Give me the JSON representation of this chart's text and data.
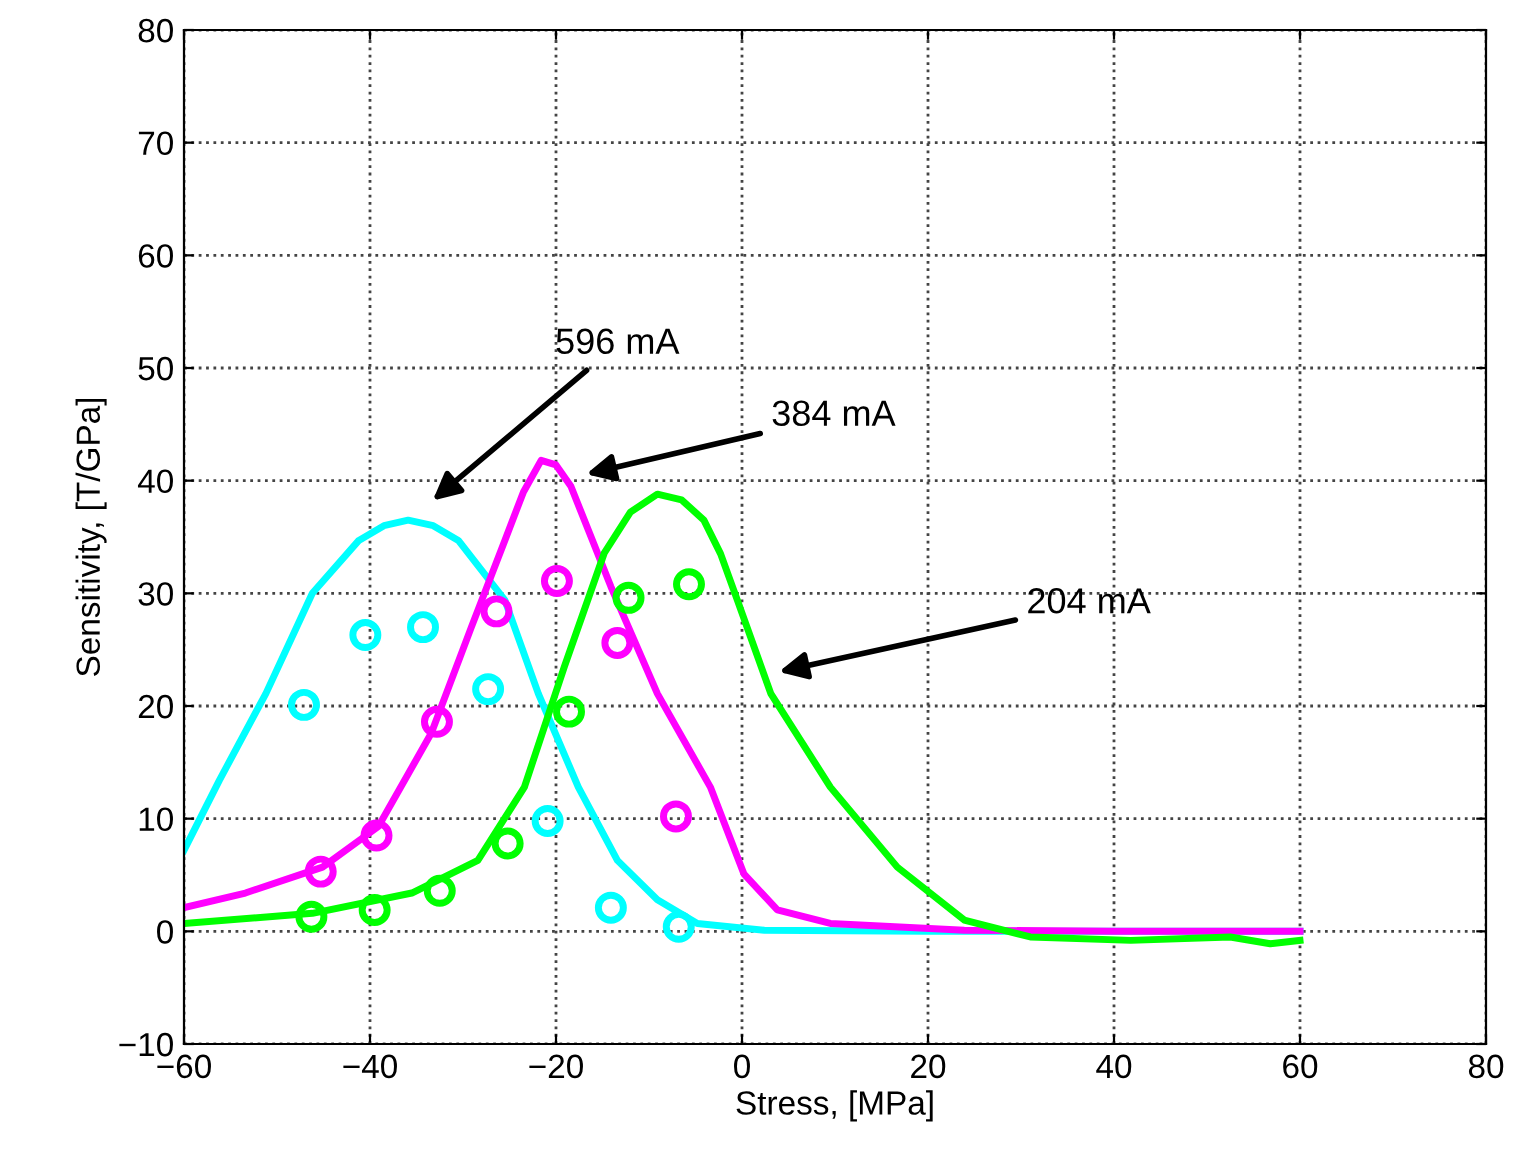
{
  "chart_data": {
    "type": "line",
    "xlabel": "Stress, [MPa]",
    "ylabel": "Sensitivity, [T/GPa]",
    "xlim": [
      -60,
      80
    ],
    "xticks": [
      -60,
      -40,
      -20,
      0,
      20,
      40,
      60,
      80
    ],
    "ylim": [
      -10,
      80
    ],
    "yticks": [
      -10,
      0,
      10,
      20,
      30,
      40,
      50,
      60,
      70,
      80
    ],
    "grid": true,
    "legend": false,
    "series": [
      {
        "color": "#00ffff",
        "marker": "none",
        "line_style": "solid",
        "x": [
          -60,
          -56.2,
          -51.2,
          -46.2,
          -41.2,
          -38.5,
          -35.9,
          -33.2,
          -30.5,
          -25.5,
          -21.9,
          -17.6,
          -13.4,
          -9.1,
          -4.8,
          2.4,
          20,
          40,
          60
        ],
        "values": [
          7.2,
          13.4,
          21.1,
          30,
          34.7,
          36.0,
          36.5,
          36.0,
          34.7,
          29.4,
          21.1,
          12.8,
          6.3,
          2.8,
          0.7,
          0.1,
          0,
          0,
          0
        ]
      },
      {
        "color": "#ff00ff",
        "marker": "none",
        "line_style": "solid",
        "x": [
          -60,
          -53.4,
          -45.1,
          -39.1,
          -33.4,
          -29.1,
          -25.5,
          -23.5,
          -21.6,
          -20,
          -18.4,
          -14.1,
          -9.1,
          -3.4,
          0.2,
          3.8,
          9.5,
          23.9,
          40,
          60
        ],
        "values": [
          2.1,
          3.4,
          5.7,
          9.3,
          17.6,
          27,
          34.7,
          39.0,
          41.8,
          41.4,
          39.5,
          30.6,
          21.1,
          12.8,
          5.1,
          1.9,
          0.7,
          0.1,
          0,
          0
        ]
      },
      {
        "color": "#00ff00",
        "marker": "none",
        "line_style": "solid",
        "x": [
          -60,
          -46.2,
          -35.5,
          -28.4,
          -23.4,
          -19.1,
          -14.8,
          -12,
          -9.1,
          -6.5,
          -4.1,
          -2.3,
          -0.5,
          3.1,
          9.5,
          16.7,
          23.9,
          31.0,
          41.8,
          52.5,
          56.8,
          60
        ],
        "values": [
          0.7,
          1.6,
          3.4,
          6.3,
          12.8,
          23.5,
          33.6,
          37.2,
          38.8,
          38.3,
          36.5,
          33.5,
          29.4,
          21.1,
          12.8,
          5.7,
          1.0,
          -0.5,
          -0.8,
          -0.5,
          -1.1,
          -0.8
        ]
      },
      {
        "type": "scatter",
        "color": "#00ffff",
        "marker": "circle",
        "x": [
          -47.1,
          -40.5,
          -34.3,
          -27.3,
          -20.9,
          -14.1,
          -6.8
        ],
        "values": [
          20.1,
          26.3,
          27.0,
          21.5,
          9.8,
          2.1,
          0.4
        ]
      },
      {
        "type": "scatter",
        "color": "#ff00ff",
        "marker": "circle",
        "x": [
          -45.3,
          -39.3,
          -32.8,
          -26.4,
          -19.9,
          -13.4,
          -7.1
        ],
        "values": [
          5.3,
          8.5,
          18.6,
          28.4,
          31.1,
          25.6,
          10.2
        ]
      },
      {
        "type": "scatter",
        "color": "#00ff00",
        "marker": "circle",
        "x": [
          -46.3,
          -39.5,
          -32.5,
          -25.2,
          -18.6,
          -12.2,
          -5.7
        ],
        "values": [
          1.3,
          1.9,
          3.6,
          7.8,
          19.5,
          29.6,
          30.8
        ]
      }
    ],
    "annotations": [
      "596 mA",
      "384 mA",
      "204 mA"
    ]
  }
}
